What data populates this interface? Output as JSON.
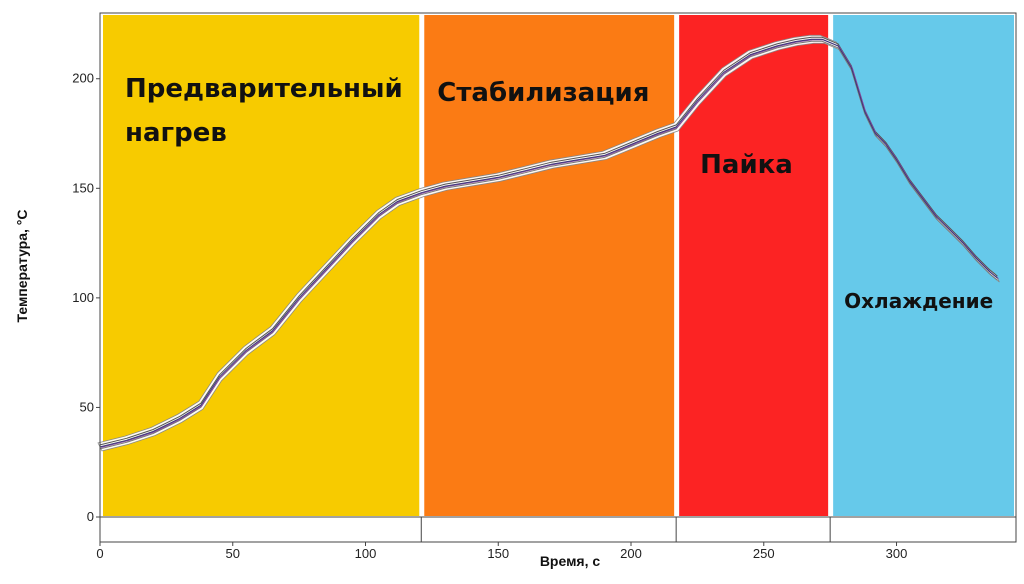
{
  "chart_data": {
    "type": "line",
    "title": "",
    "xlabel": "Время, с",
    "ylabel": "Температура, °С",
    "xlim": [
      0,
      345
    ],
    "ylim": [
      0,
      230
    ],
    "xticks": [
      0,
      50,
      100,
      150,
      200,
      250,
      300
    ],
    "yticks": [
      0,
      50,
      100,
      150,
      200
    ],
    "grid": false,
    "zones": [
      {
        "name": "Предварительный нагрев",
        "lines": [
          "Предварительный",
          "нагрев"
        ],
        "x_start": 0,
        "x_end": 121,
        "color": "#f7cb00"
      },
      {
        "name": "Стабилизация",
        "lines": [
          "Стабилизация"
        ],
        "x_start": 121,
        "x_end": 217,
        "color": "#fb7b14"
      },
      {
        "name": "Пайка",
        "lines": [
          "Пайка"
        ],
        "x_start": 217,
        "x_end": 275,
        "color": "#fc2323"
      },
      {
        "name": "Охлаждение",
        "lines": [
          "Охлаждение"
        ],
        "x_start": 275,
        "x_end": 345,
        "color": "#66c9ea"
      }
    ],
    "series": [
      {
        "x": [
          0,
          10,
          20,
          30,
          38,
          45,
          55,
          65,
          75,
          85,
          95,
          105,
          112,
          121,
          130,
          140,
          150,
          160,
          170,
          180,
          190,
          200,
          210,
          217,
          225,
          235,
          245,
          255,
          262,
          268,
          272,
          278,
          283,
          288,
          292,
          296,
          300,
          305,
          310,
          315,
          320,
          325,
          330,
          335,
          338
        ],
        "y": [
          32,
          35,
          39,
          45,
          51,
          64,
          76,
          85,
          100,
          113,
          126,
          138,
          144,
          148,
          151,
          153,
          155,
          158,
          161,
          163,
          165,
          170,
          175,
          178,
          190,
          203,
          211,
          215,
          217,
          218,
          218,
          215,
          205,
          185,
          175,
          170,
          163,
          153,
          145,
          137,
          131,
          125,
          118,
          112,
          109
        ],
        "color": "#3a3a7a"
      }
    ]
  }
}
